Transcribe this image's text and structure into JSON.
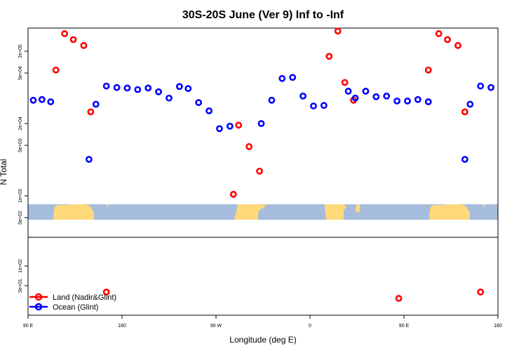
{
  "chart_data": {
    "type": "scatter",
    "title": "30S-20S June (Ver 9)   Inf to -Inf",
    "xlabel": "Longitude (deg E)",
    "ylabel": "N Total",
    "xlim": [
      -90,
      180
    ],
    "x_tick_labels": [
      {
        "value": -90,
        "label": "90 E"
      },
      {
        "value": -36,
        "label": "180"
      },
      {
        "value": 18,
        "label": "90 W"
      },
      {
        "value": 72,
        "label": "0"
      },
      {
        "value": 126,
        "label": "90 E"
      },
      {
        "value": 180,
        "label": "180"
      }
    ],
    "upper_panel": {
      "y_scale": "log",
      "y_tick_labels": [
        "5e+02",
        "1e+03",
        "5e+03",
        "1e+04",
        "5e+04",
        "1e+05"
      ]
    },
    "lower_panel": {
      "y_scale": "log",
      "y_tick_labels": [
        "5e+01",
        "1e+02"
      ]
    },
    "map_strip": {
      "ocean_color": "#a6bcdd",
      "land_color": "#ffd97a"
    },
    "series": [
      {
        "name": "Land (Nadir&Glint)",
        "color": "#ff0000",
        "points": [
          {
            "x": -74,
            "y": 55000,
            "panel": "upper"
          },
          {
            "x": -69,
            "y": 175000,
            "panel": "upper"
          },
          {
            "x": -64,
            "y": 145000,
            "panel": "upper"
          },
          {
            "x": -58,
            "y": 120000,
            "panel": "upper"
          },
          {
            "x": -54,
            "y": 14500,
            "panel": "upper"
          },
          {
            "x": -45,
            "y": 40,
            "panel": "lower"
          },
          {
            "x": 28,
            "y": 1050,
            "panel": "upper"
          },
          {
            "x": 31,
            "y": 9500,
            "panel": "upper"
          },
          {
            "x": 37,
            "y": 4800,
            "panel": "upper"
          },
          {
            "x": 43,
            "y": 2200,
            "panel": "upper"
          },
          {
            "x": 83,
            "y": 85000,
            "panel": "upper"
          },
          {
            "x": 88,
            "y": 190000,
            "panel": "upper"
          },
          {
            "x": 92,
            "y": 37000,
            "panel": "upper"
          },
          {
            "x": 97,
            "y": 21000,
            "panel": "upper"
          },
          {
            "x": 123,
            "y": 32,
            "panel": "lower"
          },
          {
            "x": 140,
            "y": 55000,
            "panel": "upper"
          },
          {
            "x": 146,
            "y": 175000,
            "panel": "upper"
          },
          {
            "x": 151,
            "y": 145000,
            "panel": "upper"
          },
          {
            "x": 157,
            "y": 120000,
            "panel": "upper"
          },
          {
            "x": 161,
            "y": 14500,
            "panel": "upper"
          },
          {
            "x": 170,
            "y": 40,
            "panel": "lower"
          }
        ]
      },
      {
        "name": "Ocean (Glint)",
        "color": "#0000ff",
        "points": [
          {
            "x": -87,
            "y": 21000,
            "panel": "upper"
          },
          {
            "x": -82,
            "y": 21500,
            "panel": "upper"
          },
          {
            "x": -77,
            "y": 20000,
            "panel": "upper"
          },
          {
            "x": -55,
            "y": 3200,
            "panel": "upper"
          },
          {
            "x": -51,
            "y": 18500,
            "panel": "upper"
          },
          {
            "x": -45,
            "y": 33000,
            "panel": "upper"
          },
          {
            "x": -39,
            "y": 31500,
            "panel": "upper"
          },
          {
            "x": -33,
            "y": 31000,
            "panel": "upper"
          },
          {
            "x": -27,
            "y": 29500,
            "panel": "upper"
          },
          {
            "x": -21,
            "y": 31000,
            "panel": "upper"
          },
          {
            "x": -15,
            "y": 27500,
            "panel": "upper"
          },
          {
            "x": -9,
            "y": 22500,
            "panel": "upper"
          },
          {
            "x": -3,
            "y": 32500,
            "panel": "upper"
          },
          {
            "x": 2,
            "y": 30500,
            "panel": "upper"
          },
          {
            "x": 8,
            "y": 19500,
            "panel": "upper"
          },
          {
            "x": 14,
            "y": 15000,
            "panel": "upper"
          },
          {
            "x": 20,
            "y": 8500,
            "panel": "upper"
          },
          {
            "x": 26,
            "y": 9200,
            "panel": "upper"
          },
          {
            "x": 44,
            "y": 10000,
            "panel": "upper"
          },
          {
            "x": 50,
            "y": 21000,
            "panel": "upper"
          },
          {
            "x": 56,
            "y": 42000,
            "panel": "upper"
          },
          {
            "x": 62,
            "y": 43500,
            "panel": "upper"
          },
          {
            "x": 68,
            "y": 24000,
            "panel": "upper"
          },
          {
            "x": 74,
            "y": 17500,
            "panel": "upper"
          },
          {
            "x": 80,
            "y": 17800,
            "panel": "upper"
          },
          {
            "x": 94,
            "y": 28000,
            "panel": "upper"
          },
          {
            "x": 98,
            "y": 22500,
            "panel": "upper"
          },
          {
            "x": 104,
            "y": 28000,
            "panel": "upper"
          },
          {
            "x": 110,
            "y": 23500,
            "panel": "upper"
          },
          {
            "x": 116,
            "y": 24000,
            "panel": "upper"
          },
          {
            "x": 122,
            "y": 20500,
            "panel": "upper"
          },
          {
            "x": 128,
            "y": 20500,
            "panel": "upper"
          },
          {
            "x": 134,
            "y": 21500,
            "panel": "upper"
          },
          {
            "x": 140,
            "y": 20000,
            "panel": "upper"
          },
          {
            "x": 161,
            "y": 3200,
            "panel": "upper"
          },
          {
            "x": 164,
            "y": 18500,
            "panel": "upper"
          },
          {
            "x": 170,
            "y": 33000,
            "panel": "upper"
          },
          {
            "x": 176,
            "y": 31500,
            "panel": "upper"
          }
        ]
      }
    ]
  }
}
